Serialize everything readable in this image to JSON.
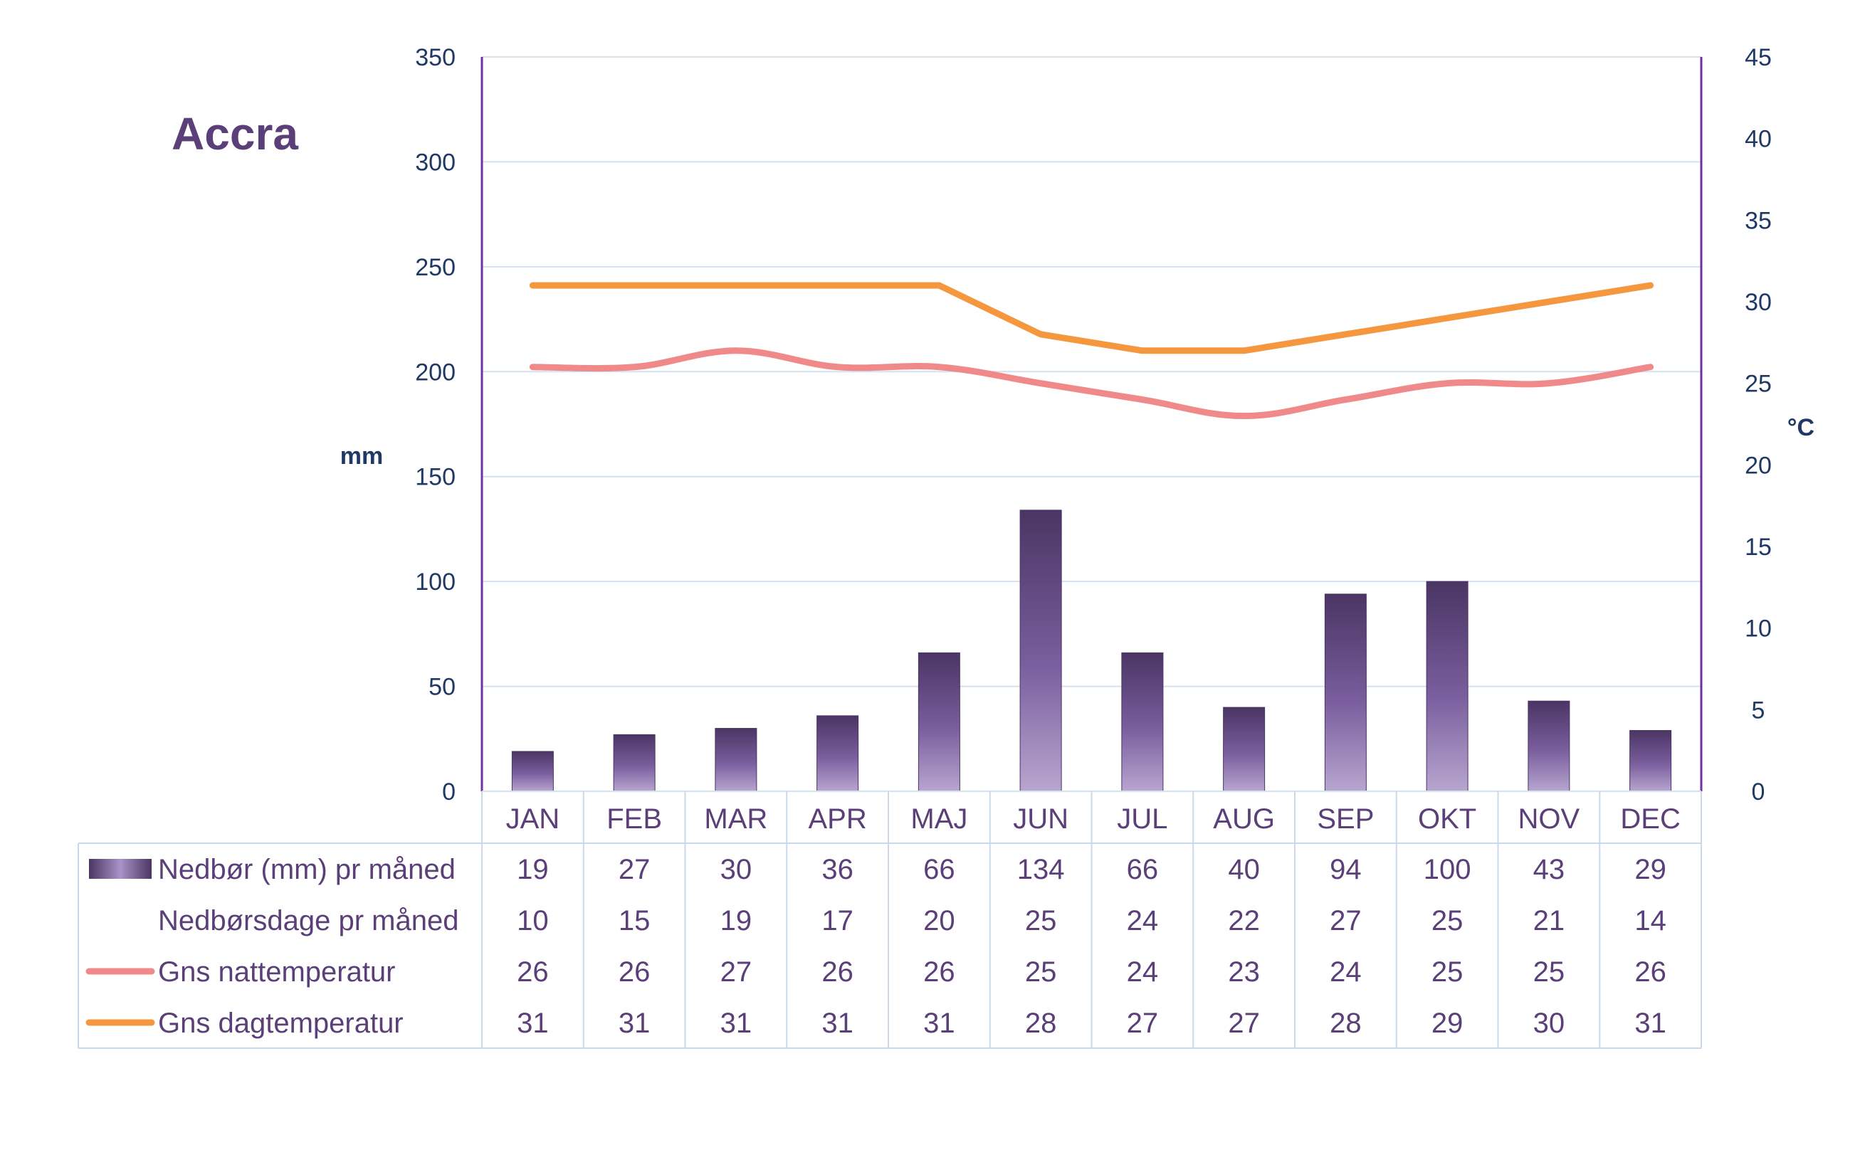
{
  "chart_data": {
    "type": "bar",
    "title": "Accra",
    "categories": [
      "JAN",
      "FEB",
      "MAR",
      "APR",
      "MAJ",
      "JUN",
      "JUL",
      "AUG",
      "SEP",
      "OKT",
      "NOV",
      "DEC"
    ],
    "left_axis": {
      "unit": "mm",
      "ylim": [
        0,
        350
      ],
      "ticks": [
        "0",
        "50",
        "100",
        "150",
        "200",
        "250",
        "300",
        "350"
      ]
    },
    "right_axis": {
      "unit": "°C",
      "ylim": [
        0,
        45
      ],
      "ticks": [
        "0",
        "5",
        "10",
        "15",
        "20",
        "25",
        "30",
        "35",
        "40",
        "45"
      ]
    },
    "grid": true,
    "legend": "table-below",
    "series": [
      {
        "name": "Nedbør (mm) pr måned",
        "type": "bar",
        "axis": "left",
        "color": "#5b3f78",
        "values": [
          19,
          27,
          30,
          36,
          66,
          134,
          66,
          40,
          94,
          100,
          43,
          29
        ]
      },
      {
        "name": "Nedbørsdage pr måned",
        "type": "table-only",
        "values": [
          10,
          15,
          19,
          17,
          20,
          25,
          24,
          22,
          27,
          25,
          21,
          14
        ]
      },
      {
        "name": "Gns nattemperatur",
        "type": "line",
        "axis": "right",
        "color": "#f08a8a",
        "values": [
          26,
          26,
          27,
          26,
          26,
          25,
          24,
          23,
          24,
          25,
          25,
          26
        ]
      },
      {
        "name": "Gns dagtemperatur",
        "type": "line",
        "axis": "right",
        "color": "#f5973e",
        "values": [
          31,
          31,
          31,
          31,
          31,
          28,
          27,
          27,
          28,
          29,
          30,
          31
        ]
      }
    ]
  }
}
